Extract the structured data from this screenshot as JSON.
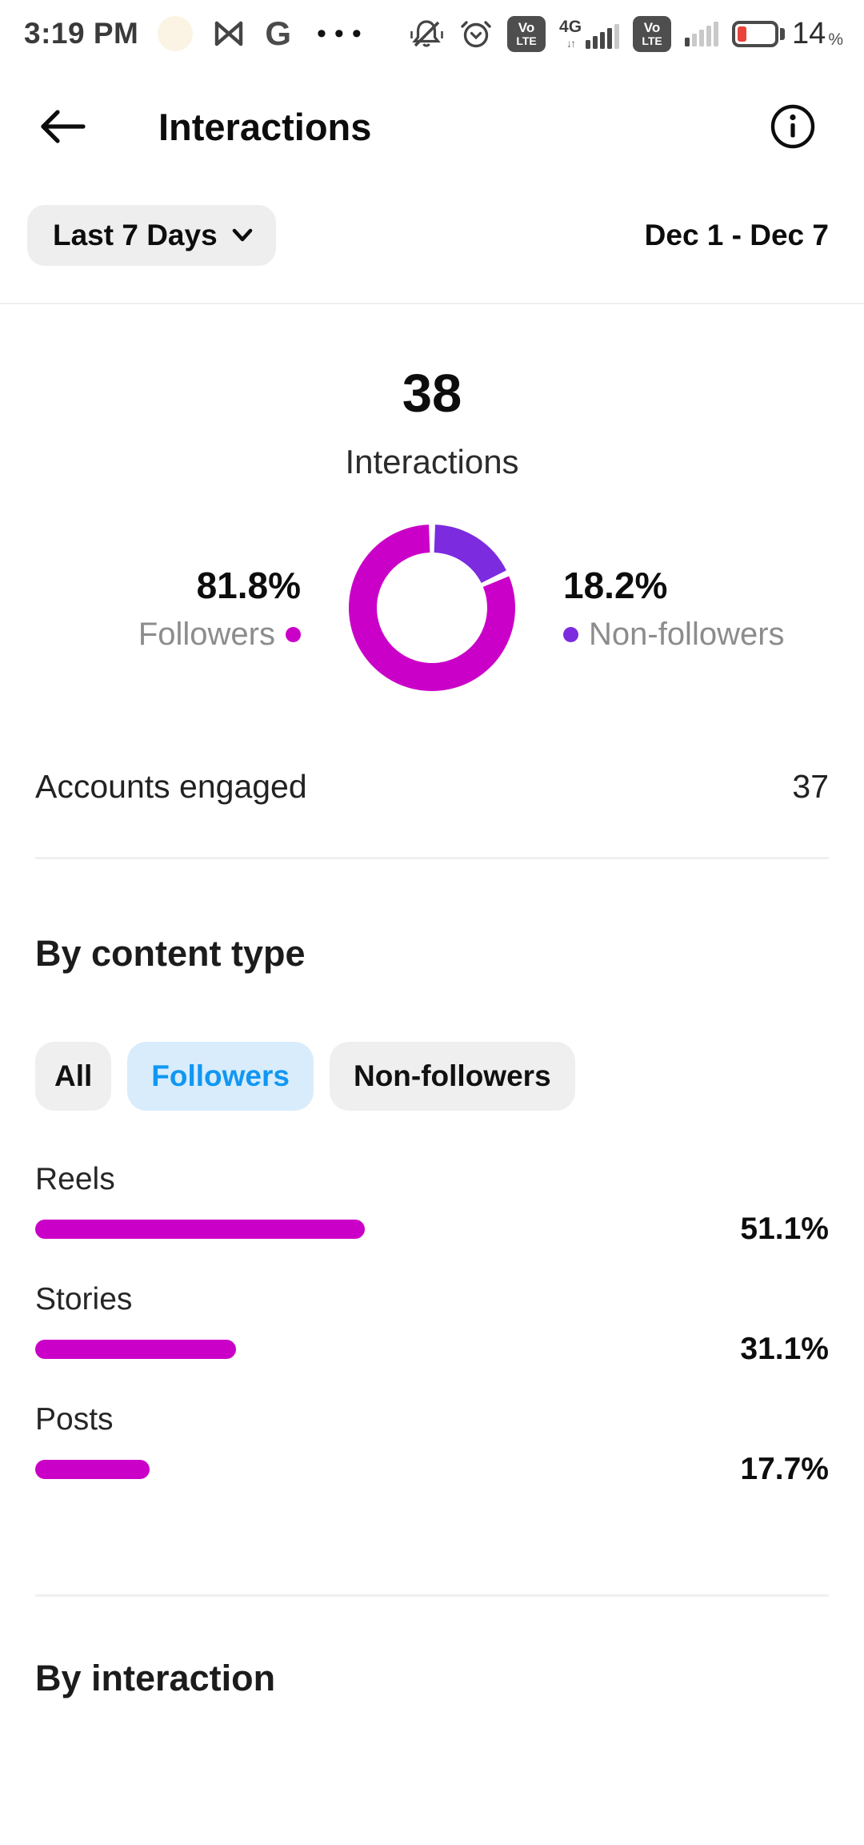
{
  "colors": {
    "magenta": "#CB00C8",
    "purple": "#7C2BDF",
    "chip_active_bg": "#D8ECFC",
    "chip_active_text": "#1097F2",
    "chip_bg": "#EFEFEF",
    "battery_low_red": "#E8443A"
  },
  "status_bar": {
    "time": "3:19 PM",
    "google_label": "G",
    "more_indicator": "•••",
    "updown_arrows": "↓↑",
    "network_type": "4G",
    "volte_top": "Vo",
    "volte_bottom": "LTE",
    "battery_percent": "14",
    "percent_sign": "%"
  },
  "header": {
    "title": "Interactions"
  },
  "filter": {
    "period": "Last 7 Days",
    "date_range": "Dec 1 - Dec 7"
  },
  "summary": {
    "value": "38",
    "label": "Interactions"
  },
  "engaged": {
    "label": "Accounts engaged",
    "value": "37"
  },
  "sections": {
    "content_type": "By content type",
    "interaction": "By interaction"
  },
  "chips": {
    "all": "All",
    "followers": "Followers",
    "non_followers": "Non-followers"
  },
  "chart_data": [
    {
      "type": "pie",
      "subtype": "donut",
      "total": 38,
      "total_label": "Interactions",
      "legend_position": "sides",
      "segments": [
        {
          "label": "Followers",
          "value": 81.8,
          "percent_text": "81.8%",
          "color": "#CB00C8"
        },
        {
          "label": "Non-followers",
          "value": 18.2,
          "percent_text": "18.2%",
          "color": "#7C2BDF"
        }
      ],
      "clockwise_from_top": [
        1,
        0
      ]
    },
    {
      "type": "bar",
      "orientation": "horizontal",
      "title": "By content type",
      "active_filter": "All",
      "categories": [
        "Reels",
        "Stories",
        "Posts"
      ],
      "values": [
        51.1,
        31.1,
        17.7
      ],
      "value_texts": [
        "51.1%",
        "31.1%",
        "17.7%"
      ],
      "unit": "%",
      "xlim": [
        0,
        100
      ],
      "bar_color": "#CB00C8"
    }
  ]
}
